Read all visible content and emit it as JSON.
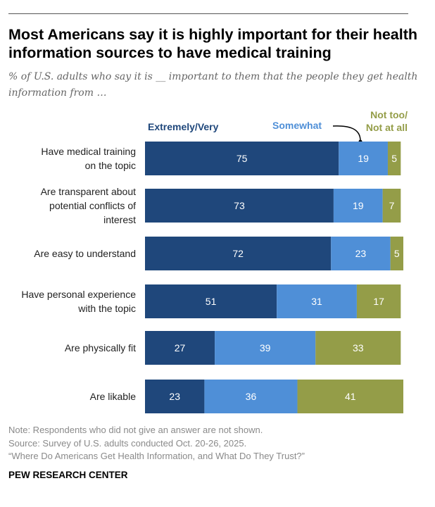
{
  "title": "Most Americans say it is highly important for their health information sources to have medical training",
  "subtitle": "% of U.S. adults who say it is __ important to them that the people they get health information from …",
  "notes": [
    "Note: Respondents who did not give an answer are not shown.",
    "Source: Survey of U.S. adults conducted Oct. 20-26, 2025.",
    "“Where Do Americans Get Health Information, and What Do They Trust?”"
  ],
  "brand": "PEW RESEARCH CENTER",
  "chart_data": {
    "type": "bar",
    "orientation": "horizontal-stacked",
    "categories": [
      [
        "Have medical training",
        "on the topic"
      ],
      [
        "Are transparent about",
        "potential conflicts of",
        "interest"
      ],
      [
        "Are easy to understand"
      ],
      [
        "Have personal experience",
        "with the topic"
      ],
      [
        "Are physically fit"
      ],
      [
        "Are likable"
      ]
    ],
    "series": [
      {
        "name": "Extremely/Very",
        "color": "#1f477b",
        "values": [
          75,
          73,
          72,
          51,
          27,
          23
        ]
      },
      {
        "name": "Somewhat",
        "color": "#4f8fd7",
        "values": [
          19,
          19,
          23,
          31,
          39,
          36
        ]
      },
      {
        "name": "Not too/ Not at all",
        "legend_lines": [
          "Not too/",
          "Not at all"
        ],
        "color": "#949d48",
        "values": [
          5,
          7,
          5,
          17,
          33,
          41
        ]
      }
    ],
    "xlim": [
      0,
      100
    ],
    "legend": "top"
  }
}
